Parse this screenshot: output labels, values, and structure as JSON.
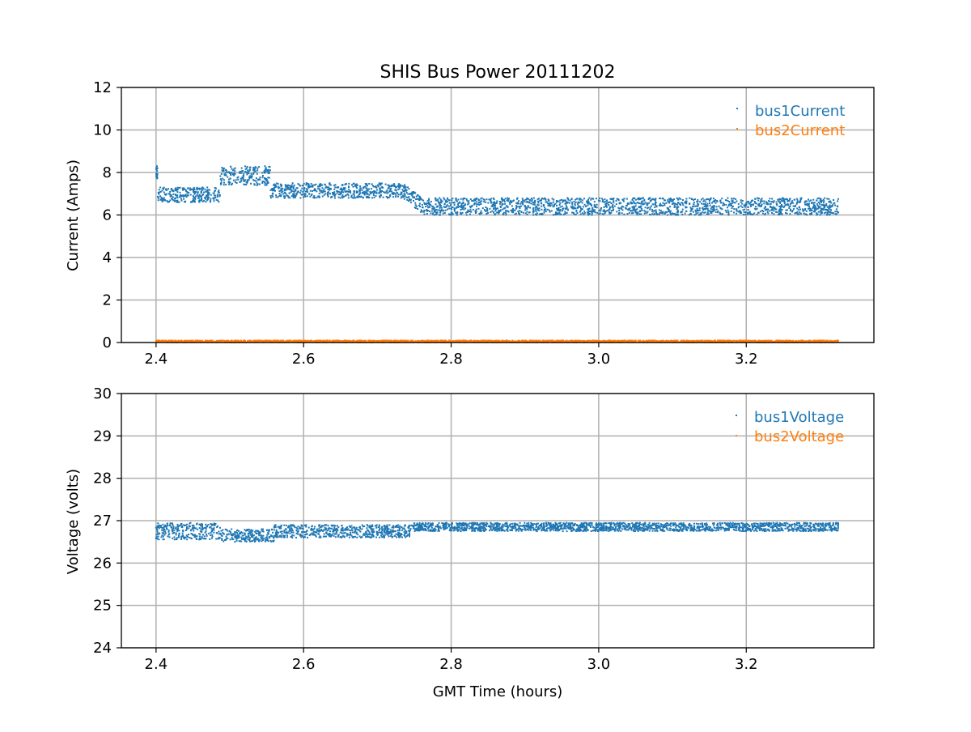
{
  "title": "SHIS Bus Power 20111202",
  "colors": {
    "series1": "#1f77b4",
    "series2": "#ff7f0e",
    "grid": "#b0b0b0"
  },
  "chart_data": [
    {
      "type": "scatter",
      "xlabel": "",
      "ylabel": "Current (Amps)",
      "xlim": [
        2.353,
        3.373
      ],
      "ylim": [
        0,
        12
      ],
      "xticks": [
        "2.4",
        "2.6",
        "2.8",
        "3.0",
        "3.2"
      ],
      "yticks": [
        "0",
        "2",
        "4",
        "6",
        "8",
        "10",
        "12"
      ],
      "grid": true,
      "legend_position": "top-right",
      "series": [
        {
          "name": "bus1Current",
          "segments": [
            {
              "x": [
                2.4,
                2.402
              ],
              "y_min": 7.6,
              "y_max": 8.3
            },
            {
              "x": [
                2.402,
                2.487
              ],
              "y_min": 6.6,
              "y_max": 7.3
            },
            {
              "x": [
                2.487,
                2.555
              ],
              "y_min": 7.4,
              "y_max": 8.3
            },
            {
              "x": [
                2.555,
                2.735
              ],
              "y_min": 6.8,
              "y_max": 7.5
            },
            {
              "x": [
                2.735,
                2.765
              ],
              "y_min": 6.0,
              "y_max": 7.2
            },
            {
              "x": [
                2.765,
                3.325
              ],
              "y_min": 6.0,
              "y_max": 6.8
            }
          ]
        },
        {
          "name": "bus2Current",
          "segments": [
            {
              "x": [
                2.4,
                3.325
              ],
              "y_min": 0.0,
              "y_max": 0.1
            }
          ]
        }
      ]
    },
    {
      "type": "scatter",
      "xlabel": "GMT Time (hours)",
      "ylabel": "Voltage (volts)",
      "xlim": [
        2.353,
        3.373
      ],
      "ylim": [
        24,
        30
      ],
      "xticks": [
        "2.4",
        "2.6",
        "2.8",
        "3.0",
        "3.2"
      ],
      "yticks": [
        "24",
        "25",
        "26",
        "27",
        "28",
        "29",
        "30"
      ],
      "grid": true,
      "legend_position": "top-right",
      "series": [
        {
          "name": "bus1Voltage",
          "segments": [
            {
              "x": [
                2.4,
                2.487
              ],
              "y_min": 26.55,
              "y_max": 26.95
            },
            {
              "x": [
                2.487,
                2.56
              ],
              "y_min": 26.5,
              "y_max": 26.8
            },
            {
              "x": [
                2.56,
                2.745
              ],
              "y_min": 26.6,
              "y_max": 26.9
            },
            {
              "x": [
                2.745,
                3.325
              ],
              "y_min": 26.75,
              "y_max": 26.95
            }
          ]
        },
        {
          "name": "bus2Voltage",
          "segments": []
        }
      ]
    }
  ]
}
